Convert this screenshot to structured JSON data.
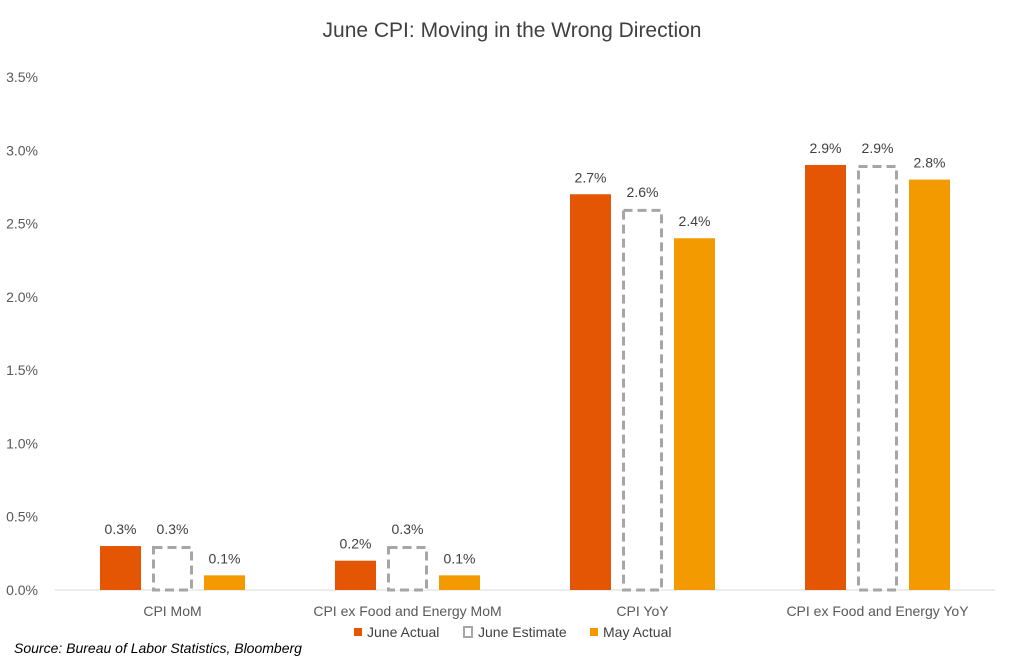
{
  "chart_data": {
    "type": "bar",
    "title": "June CPI: Moving in the Wrong Direction",
    "categories": [
      "CPI MoM",
      "CPI ex Food and Energy MoM",
      "CPI YoY",
      "CPI ex Food and Energy YoY"
    ],
    "series": [
      {
        "name": "June Actual",
        "values": [
          0.3,
          0.2,
          2.7,
          2.9
        ],
        "labels": [
          "0.3%",
          "0.2%",
          "2.7%",
          "2.9%"
        ],
        "color": "#e45504",
        "style": "solid"
      },
      {
        "name": "June Estimate",
        "values": [
          0.3,
          0.3,
          2.6,
          2.9
        ],
        "labels": [
          "0.3%",
          "0.3%",
          "2.6%",
          "2.9%"
        ],
        "color": "#a6a6a6",
        "style": "dashed-outline"
      },
      {
        "name": "May Actual",
        "values": [
          0.1,
          0.1,
          2.4,
          2.8
        ],
        "labels": [
          "0.1%",
          "0.1%",
          "2.4%",
          "2.8%"
        ],
        "color": "#f29a00",
        "style": "solid"
      }
    ],
    "yticks": [
      "0.0%",
      "0.5%",
      "1.0%",
      "1.5%",
      "2.0%",
      "2.5%",
      "3.0%",
      "3.5%"
    ],
    "ylim": [
      0,
      3.5
    ],
    "grid": false,
    "legend": "bottom"
  },
  "source": "Source: Bureau of Labor Statistics, Bloomberg"
}
